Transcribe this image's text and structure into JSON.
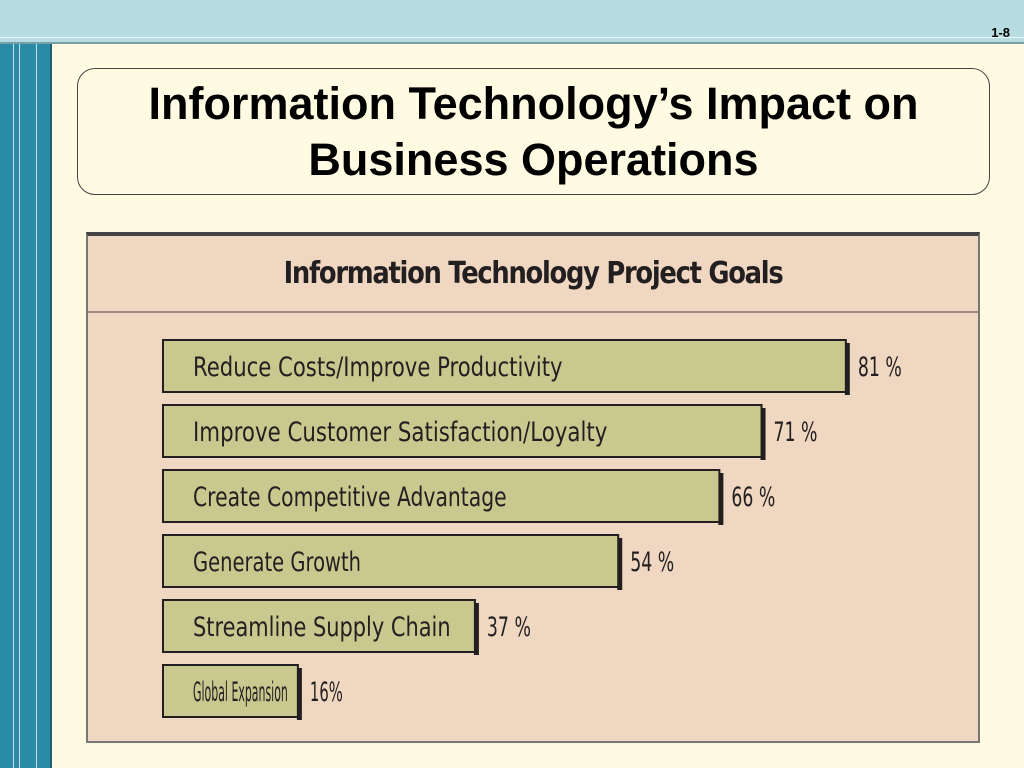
{
  "slide": {
    "number": "1-8",
    "title": "Information Technology’s Impact on Business Operations"
  },
  "colors": {
    "background": "#fffbe3",
    "top_band": "#b7dde3",
    "side_band": "#2b8aa6",
    "panel": "#efd7c1",
    "bar_fill": "#c9c98f"
  },
  "chart_data": {
    "type": "bar",
    "orientation": "horizontal",
    "title": "Information Technology Project Goals",
    "categories": [
      "Reduce Costs/Improve Productivity",
      "Improve Customer Satisfaction/Loyalty",
      "Create Competitive Advantage",
      "Generate Growth",
      "Streamline Supply Chain",
      "Global Expansion"
    ],
    "values": [
      81,
      71,
      66,
      54,
      37,
      16
    ],
    "value_labels": [
      "81 %",
      "71 %",
      "66 %",
      "54 %",
      "37 %",
      "16%"
    ],
    "xlim": [
      0,
      100
    ],
    "grid": false
  }
}
